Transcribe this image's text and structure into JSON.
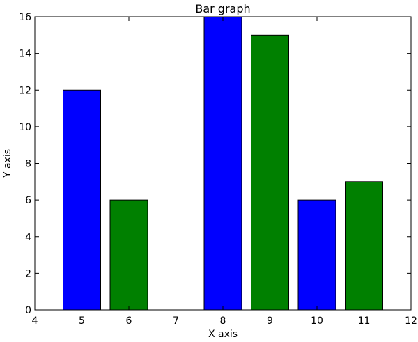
{
  "chart_data": {
    "type": "bar",
    "title": "Bar graph",
    "xlabel": "X axis",
    "ylabel": "Y axis",
    "xlim": [
      4,
      12
    ],
    "ylim": [
      0,
      16
    ],
    "xticks": [
      "4",
      "5",
      "6",
      "7",
      "8",
      "9",
      "10",
      "11",
      "12"
    ],
    "yticks": [
      "0",
      "2",
      "4",
      "6",
      "8",
      "10",
      "12",
      "14",
      "16"
    ],
    "grid": false,
    "bar_width": 0.8,
    "series": [
      {
        "color": "#0000ff",
        "x": [
          5,
          8,
          10
        ],
        "values": [
          12,
          16,
          6
        ]
      },
      {
        "color": "#008000",
        "x": [
          6,
          9,
          11
        ],
        "values": [
          6,
          15,
          7
        ]
      }
    ]
  }
}
